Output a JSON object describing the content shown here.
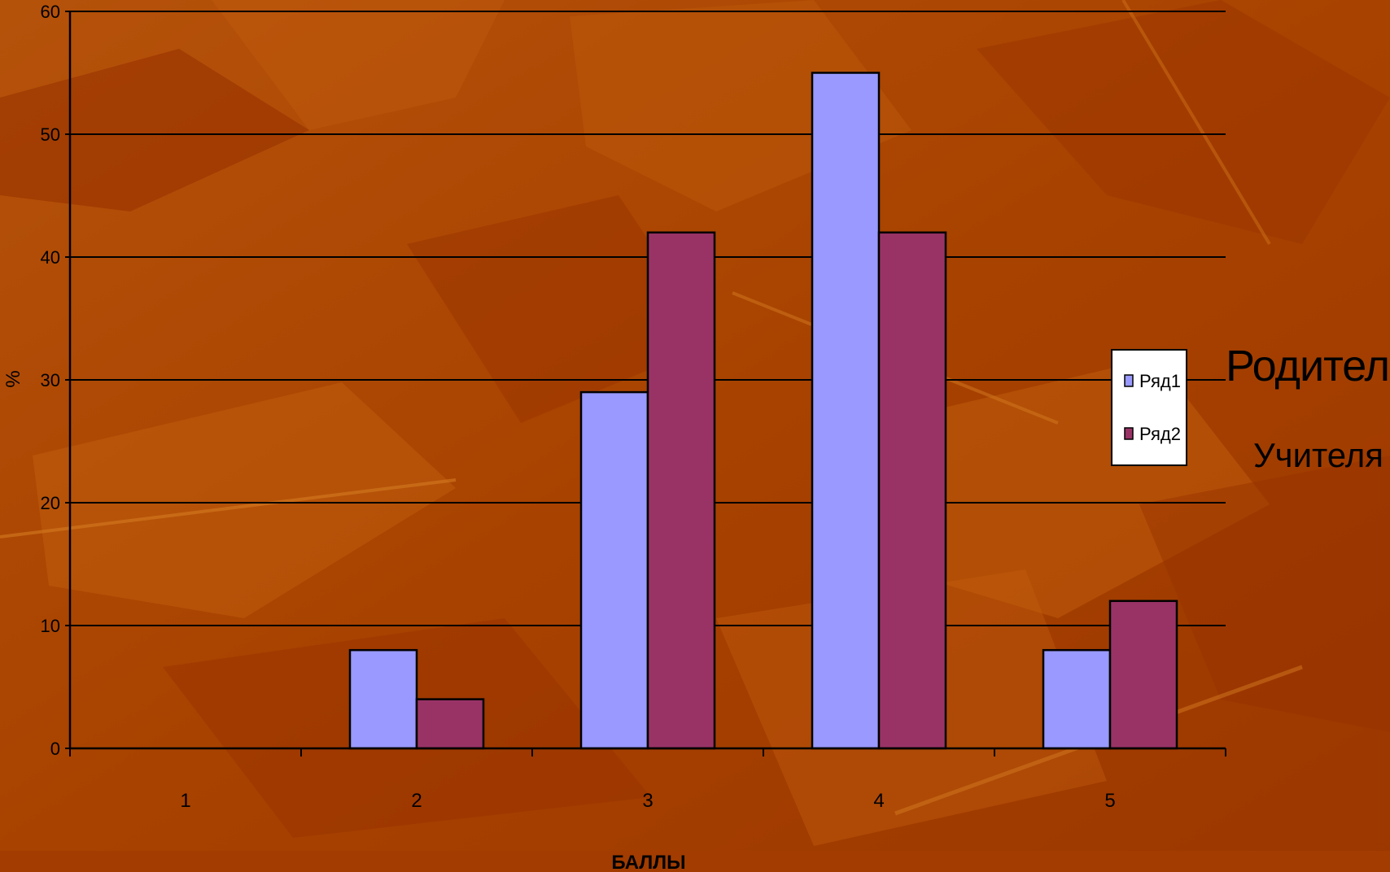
{
  "chart_data": {
    "type": "bar",
    "title": "",
    "xlabel": "БАЛЛЫ",
    "ylabel": "%",
    "categories": [
      "1",
      "2",
      "3",
      "4",
      "5"
    ],
    "yticks": [
      0,
      10,
      20,
      30,
      40,
      50,
      60
    ],
    "ylim": [
      0,
      60
    ],
    "grid": true,
    "legend_position": "right",
    "series": [
      {
        "name": "Ряд1",
        "color": "#9999ff",
        "values": [
          0,
          8,
          29,
          55,
          8
        ]
      },
      {
        "name": "Ряд2",
        "color": "#993366",
        "values": [
          0,
          4,
          42,
          42,
          12
        ]
      }
    ],
    "annotations": [
      "Родители",
      "Учителя"
    ]
  },
  "colors": {
    "background": "#b04a00",
    "background_dark": "#962f00",
    "background_light": "#c56310",
    "gridline": "#000000",
    "text": "#000000",
    "annotation_text": "#000000",
    "legend_bg": "#ffffff"
  }
}
